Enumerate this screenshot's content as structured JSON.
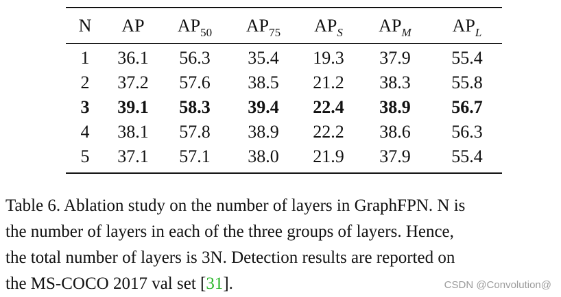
{
  "table": {
    "headers": [
      {
        "main": "N",
        "sub": "",
        "sub_italic": false
      },
      {
        "main": "AP",
        "sub": "",
        "sub_italic": false
      },
      {
        "main": "AP",
        "sub": "50",
        "sub_italic": false
      },
      {
        "main": "AP",
        "sub": "75",
        "sub_italic": false
      },
      {
        "main": "AP",
        "sub": "S",
        "sub_italic": true
      },
      {
        "main": "AP",
        "sub": "M",
        "sub_italic": true
      },
      {
        "main": "AP",
        "sub": "L",
        "sub_italic": true
      }
    ],
    "rows": [
      {
        "cells": [
          "1",
          "36.1",
          "56.3",
          "35.4",
          "19.3",
          "37.9",
          "55.4"
        ],
        "bold": false
      },
      {
        "cells": [
          "2",
          "37.2",
          "57.6",
          "38.5",
          "21.2",
          "38.3",
          "55.8"
        ],
        "bold": false
      },
      {
        "cells": [
          "3",
          "39.1",
          "58.3",
          "39.4",
          "22.4",
          "38.9",
          "56.7"
        ],
        "bold": true
      },
      {
        "cells": [
          "4",
          "38.1",
          "57.8",
          "38.9",
          "22.2",
          "38.6",
          "56.3"
        ],
        "bold": false
      },
      {
        "cells": [
          "5",
          "37.1",
          "57.1",
          "38.0",
          "21.9",
          "37.9",
          "55.4"
        ],
        "bold": false
      }
    ]
  },
  "caption": {
    "line1": "Table 6. Ablation study on the number of layers in GraphFPN. N is",
    "line2": "the number of layers in each of the three groups of layers. Hence,",
    "line3": "the total number of layers is 3N. Detection results are reported on",
    "line4_before": "the MS-COCO 2017 val set [",
    "citation": "31",
    "line4_after": "].",
    "citation_color": "#2bb52b"
  },
  "watermark": "CSDN @Convolution@"
}
